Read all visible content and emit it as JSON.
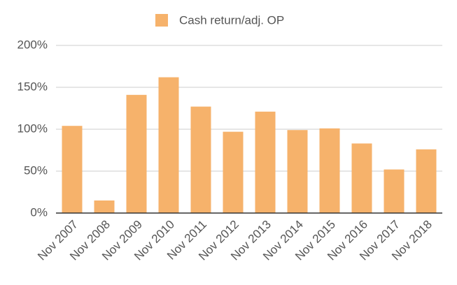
{
  "chart_data": {
    "type": "bar",
    "categories": [
      "Nov 2007",
      "Nov 2008",
      "Nov 2009",
      "Nov 2010",
      "Nov 2011",
      "Nov 2012",
      "Nov 2013",
      "Nov 2014",
      "Nov 2015",
      "Nov 2016",
      "Nov 2017",
      "Nov 2018"
    ],
    "series": [
      {
        "name": "Cash return/adj. OP",
        "color": "#f6b26b",
        "values": [
          104,
          15,
          141,
          162,
          127,
          97,
          121,
          99,
          101,
          83,
          52,
          76
        ]
      }
    ],
    "ylim": [
      0,
      200
    ],
    "yticks": [
      {
        "value": 0,
        "label": "0%"
      },
      {
        "value": 50,
        "label": "50%"
      },
      {
        "value": 100,
        "label": "100%"
      },
      {
        "value": 150,
        "label": "150%"
      },
      {
        "value": 200,
        "label": "200%"
      }
    ],
    "grid": true,
    "legend": "top"
  }
}
